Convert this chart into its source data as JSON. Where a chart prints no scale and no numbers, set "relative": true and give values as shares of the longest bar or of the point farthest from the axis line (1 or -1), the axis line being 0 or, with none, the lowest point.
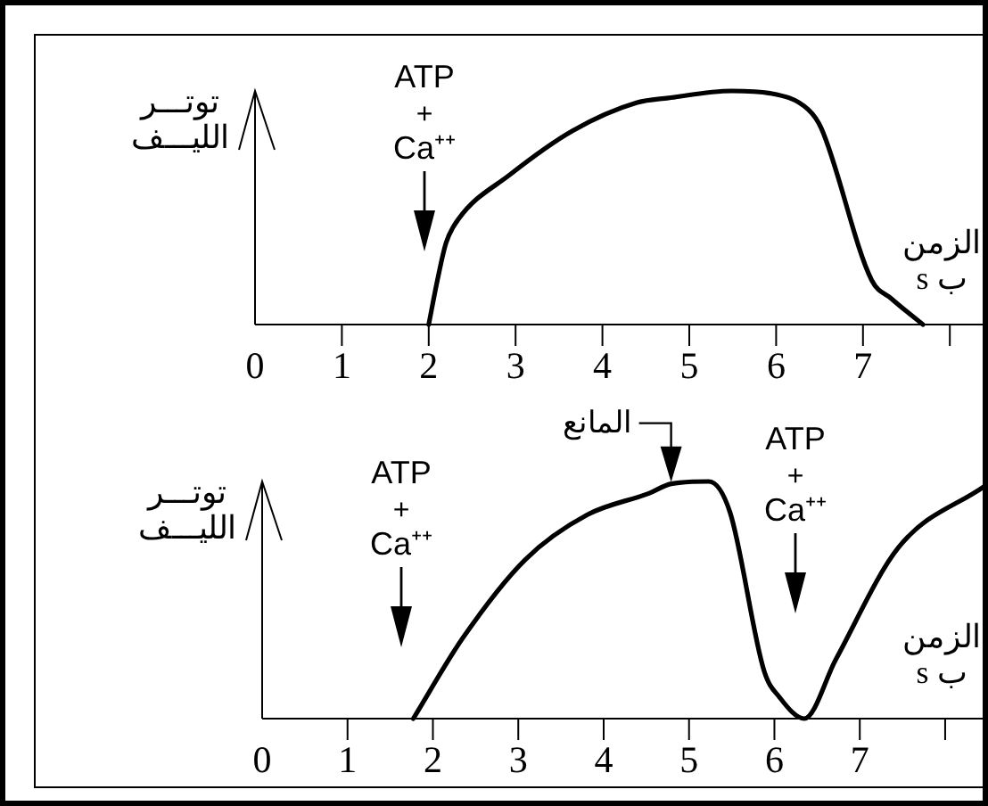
{
  "chart_data": [
    {
      "type": "line",
      "relative": true,
      "ylabel": "توتـــر\nالليـــف",
      "xlabel": "الزمن\nب s",
      "xlim": [
        0,
        8.46
      ],
      "xticks": [
        0,
        1,
        2,
        3,
        4,
        5,
        6,
        7,
        {
          "value": 8,
          "label": null
        }
      ],
      "marker": "none",
      "line_style": "solid",
      "x": [
        2.0,
        2.1,
        2.2,
        2.34,
        2.93,
        3.66,
        4.4,
        4.76,
        5.49,
        5.93,
        6.37,
        6.52,
        7.1,
        7.33,
        7.69
      ],
      "series": [
        {
          "color": "#000000",
          "values": [
            0,
            0.19,
            0.35,
            0.45,
            0.64,
            0.83,
            0.95,
            0.97,
            1.0,
            0.99,
            0.92,
            0.84,
            0.19,
            0.11,
            0
          ]
        }
      ],
      "annotations": [
        "ATP\n+\nCa⁺⁺"
      ]
    },
    {
      "type": "line",
      "relative": true,
      "ylabel": "توتـــر\nالليـــف",
      "xlabel": "الزمن\nب s",
      "xlim": [
        0,
        8.46
      ],
      "xticks": [
        0,
        1,
        2,
        3,
        4,
        5,
        6,
        7,
        {
          "value": 8,
          "label": null
        }
      ],
      "marker": "none",
      "line_style": "solid",
      "x": [
        1.77,
        2.35,
        3.08,
        3.81,
        4.53,
        4.79,
        5.23,
        5.48,
        5.88,
        6.06,
        6.35,
        6.72,
        7.45,
        8.46
      ],
      "series": [
        {
          "color": "#000000",
          "values": [
            0,
            0.34,
            0.67,
            0.86,
            0.95,
            0.99,
            1.0,
            0.87,
            0.2,
            0.09,
            0,
            0.25,
            0.72,
            0.98
          ]
        }
      ],
      "annotations": [
        "ATP\n+\nCa⁺⁺",
        {
          "text": "المانع",
          "x": 4.79,
          "y": 0.99
        },
        "ATP\n+\nCa⁺⁺"
      ]
    }
  ]
}
